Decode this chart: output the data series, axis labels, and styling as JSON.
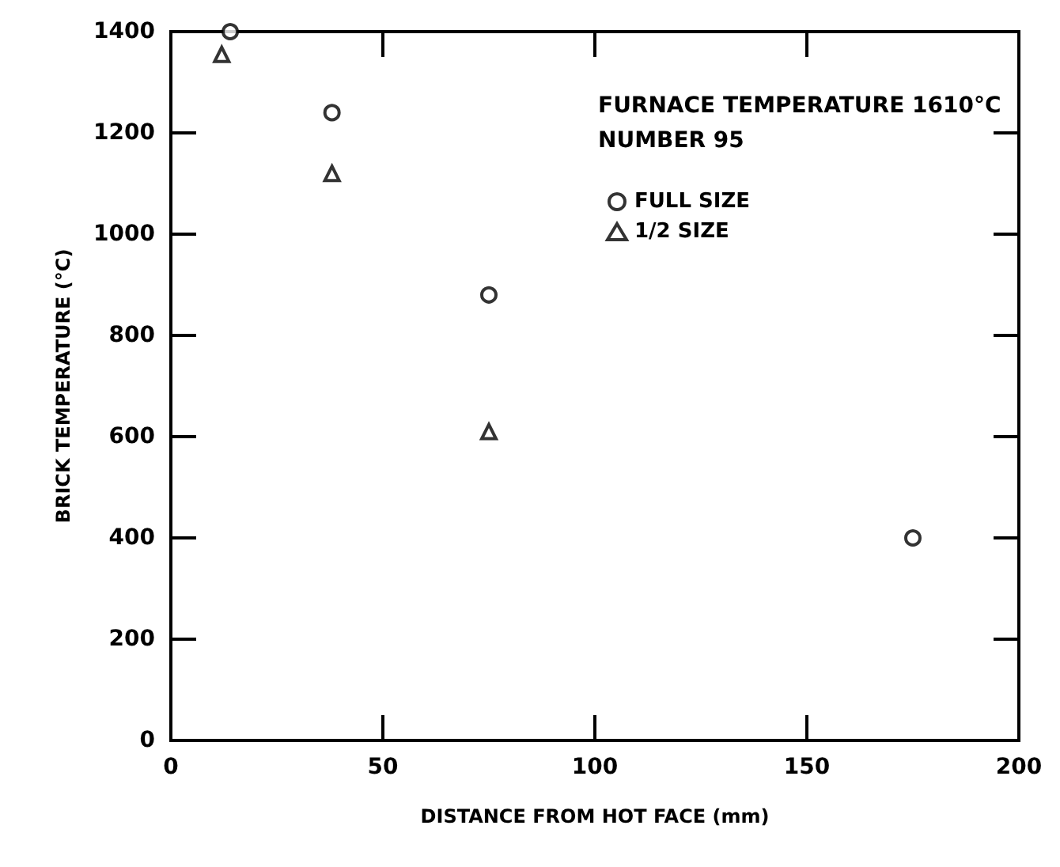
{
  "chart_data": {
    "type": "scatter",
    "xlabel": "DISTANCE FROM HOT FACE (mm)",
    "ylabel": "BRICK TEMPERATURE (°C)",
    "annotations": [
      "FURNACE TEMPERATURE 1610°C",
      "NUMBER 95"
    ],
    "series": [
      {
        "name": "FULL SIZE",
        "color": "#000000",
        "marker": "circle",
        "x": [
          14,
          38,
          75,
          175
        ],
        "values": [
          1400,
          1240,
          880,
          400
        ]
      },
      {
        "name": "1/2 SIZE",
        "color": "#000000",
        "marker": "triangle",
        "x": [
          12,
          38,
          75
        ],
        "values": [
          1355,
          1120,
          610
        ]
      }
    ],
    "xlim": [
      0,
      200
    ],
    "xticks": [
      0,
      50,
      100,
      150,
      200
    ],
    "ylim": [
      0,
      1400
    ],
    "yticks": [
      0,
      200,
      400,
      600,
      800,
      1000,
      1200,
      1400
    ],
    "grid": false,
    "legend": "top right"
  }
}
